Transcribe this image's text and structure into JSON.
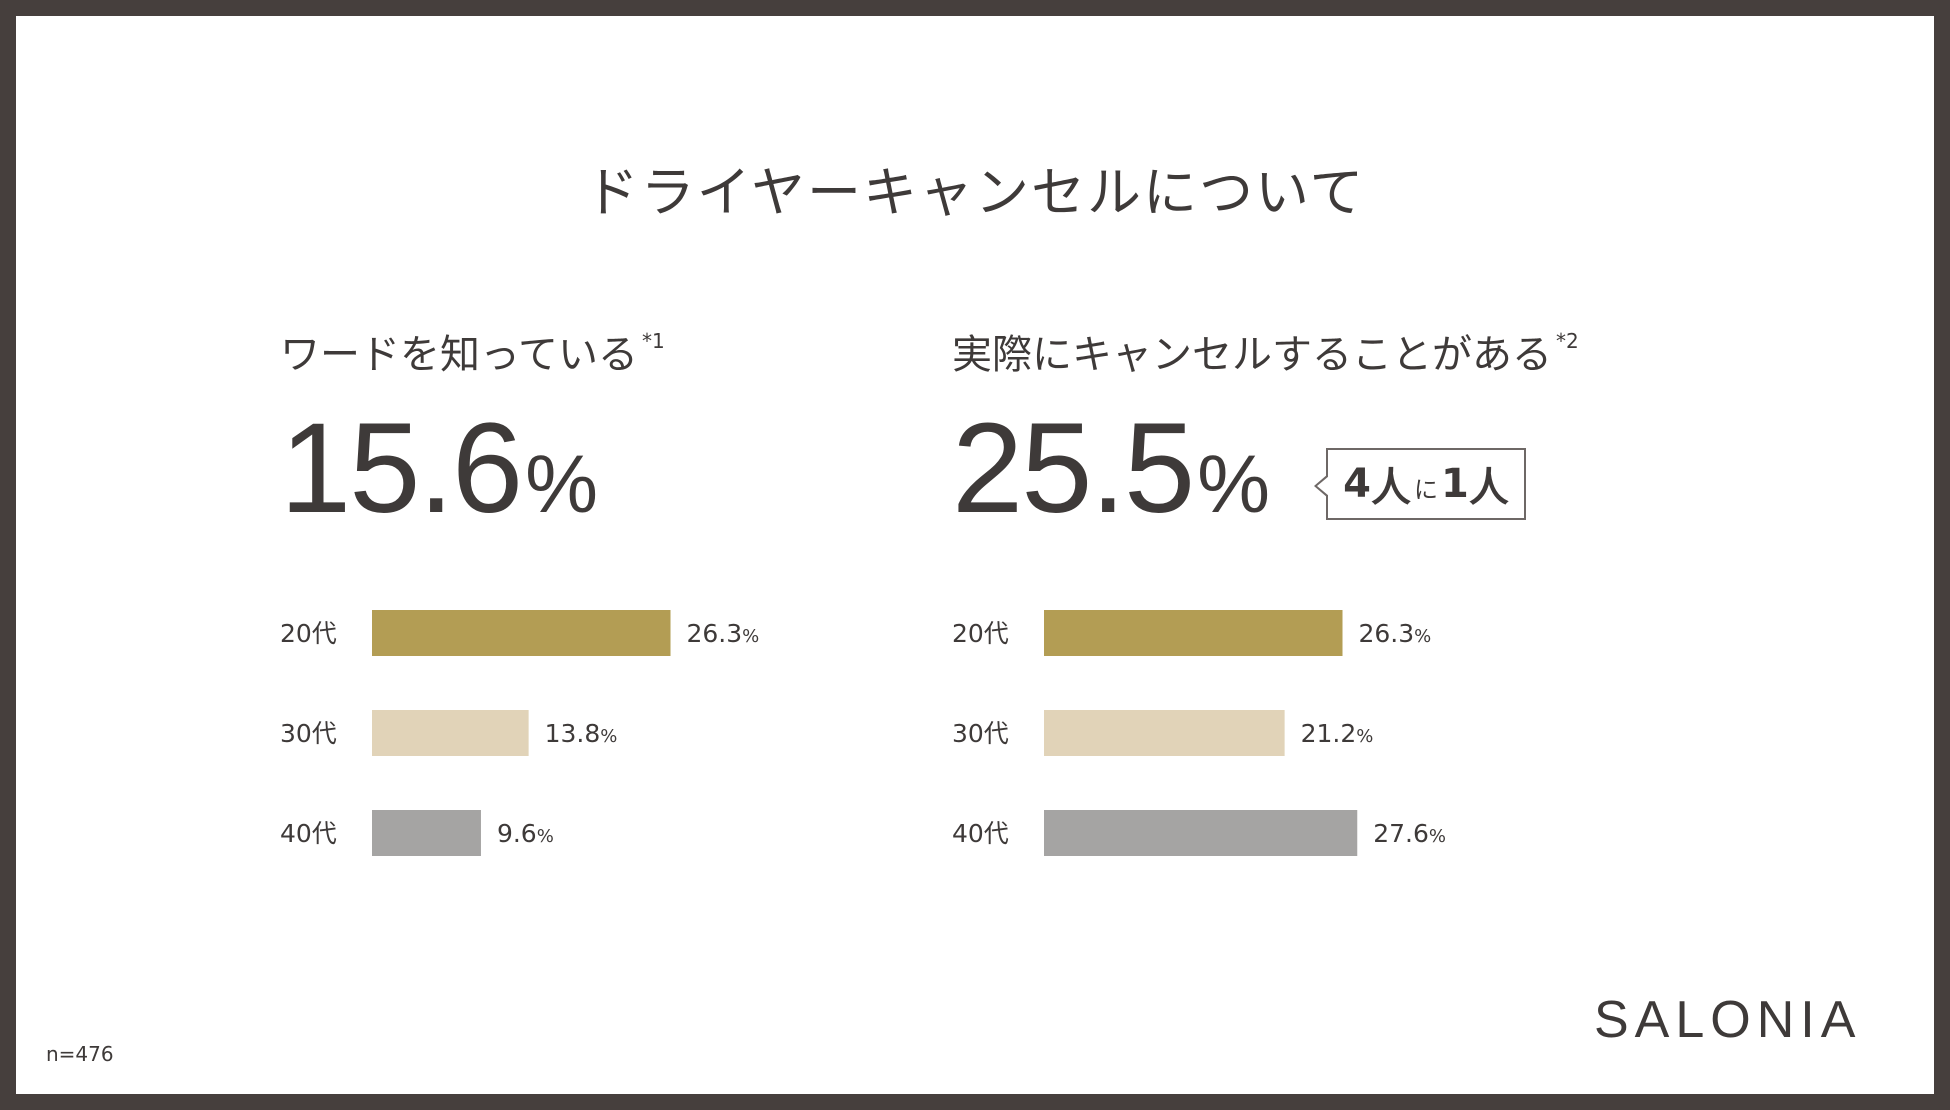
{
  "title": "ドライヤーキャンセルについて",
  "left": {
    "subtitle": "ワードを知っている",
    "note_mark": "*1",
    "headline_value": "15.6",
    "headline_unit": "%"
  },
  "right": {
    "subtitle": "実際にキャンセルすることがある",
    "note_mark": "*2",
    "headline_value": "25.5",
    "headline_unit": "%",
    "callout": {
      "num1": "4",
      "word1": "人",
      "particle": "に",
      "num2": "1",
      "word2": "人"
    }
  },
  "chart_data": [
    {
      "type": "bar",
      "orientation": "horizontal",
      "categories": [
        "20代",
        "30代",
        "40代"
      ],
      "values": [
        26.3,
        13.8,
        9.6
      ],
      "value_labels": [
        "26.3",
        "13.8",
        "9.6"
      ],
      "unit": "%",
      "colors": [
        "#b39d54",
        "#e1d3b8",
        "#a5a4a3"
      ],
      "xlim": [
        0,
        30
      ]
    },
    {
      "type": "bar",
      "orientation": "horizontal",
      "categories": [
        "20代",
        "30代",
        "40代"
      ],
      "values": [
        26.3,
        21.2,
        27.6
      ],
      "value_labels": [
        "26.3",
        "21.2",
        "27.6"
      ],
      "unit": "%",
      "colors": [
        "#b39d54",
        "#e1d3b8",
        "#a5a4a3"
      ],
      "xlim": [
        0,
        30
      ]
    }
  ],
  "footnote": "n=476",
  "logo": "SALONIA"
}
